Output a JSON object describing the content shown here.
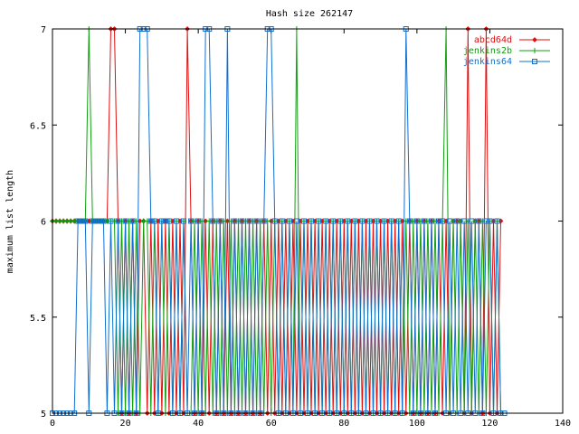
{
  "chart_data": {
    "type": "line",
    "title": "Hash size 262147",
    "xlabel": "",
    "ylabel": "maximum list length",
    "xlim": [
      0,
      140
    ],
    "ylim": [
      5,
      7
    ],
    "x_ticks": [
      "0",
      "20",
      "40",
      "60",
      "80",
      "100",
      "120",
      "140"
    ],
    "y_ticks": [
      "5",
      "5.5",
      "6",
      "6.5",
      "7"
    ],
    "legend_position": "top-right",
    "grid": false,
    "series": [
      {
        "name": "abcd64d",
        "color": "#e01010",
        "marker": "diamond",
        "x": [
          0,
          1,
          2,
          3,
          4,
          5,
          6,
          7,
          8,
          9,
          10,
          11,
          12,
          13,
          14,
          15,
          16,
          17,
          18,
          19,
          20,
          21,
          22,
          23,
          24,
          25,
          26,
          27,
          28,
          29,
          30,
          31,
          32,
          33,
          34,
          35,
          36,
          37,
          38,
          39,
          40,
          41,
          42,
          43,
          44,
          45,
          46,
          47,
          48,
          49,
          50,
          51,
          52,
          53,
          54,
          55,
          56,
          57,
          58,
          59,
          60,
          61,
          62,
          63,
          64,
          65,
          66,
          67,
          68,
          69,
          70,
          71,
          72,
          73,
          74,
          75,
          76,
          77,
          78,
          79,
          80,
          81,
          82,
          83,
          84,
          85,
          86,
          87,
          88,
          89,
          90,
          91,
          92,
          93,
          94,
          95,
          96,
          97,
          98,
          99,
          100,
          101,
          102,
          103,
          104,
          105,
          106,
          107,
          108,
          109,
          110,
          111,
          112,
          113,
          114,
          115,
          116,
          117,
          118,
          119,
          120,
          121,
          122,
          123
        ],
        "y": [
          6,
          6,
          6,
          6,
          6,
          6,
          6,
          6,
          6,
          6,
          6,
          6,
          6,
          6,
          6,
          6,
          7,
          7,
          6,
          5,
          6,
          5,
          6,
          5,
          6,
          6,
          5,
          6,
          5,
          6,
          5,
          6,
          5,
          6,
          5,
          6,
          5,
          7,
          6,
          5,
          6,
          5,
          6,
          5,
          6,
          5,
          6,
          5,
          6,
          5,
          6,
          5,
          6,
          5,
          6,
          5,
          6,
          5,
          6,
          5,
          6,
          5,
          6,
          5,
          6,
          5,
          6,
          5,
          6,
          5,
          6,
          5,
          6,
          5,
          6,
          5,
          6,
          5,
          6,
          5,
          6,
          5,
          6,
          5,
          6,
          5,
          6,
          5,
          6,
          5,
          6,
          5,
          6,
          5,
          6,
          5,
          6,
          5,
          6,
          5,
          6,
          5,
          6,
          5,
          6,
          5,
          6,
          5,
          6,
          5,
          6,
          6,
          6,
          5,
          7,
          5,
          6,
          6,
          5,
          7,
          5,
          6,
          5,
          6
        ]
      },
      {
        "name": "jenkins2b",
        "color": "#10a010",
        "marker": "plus",
        "x": [
          0,
          1,
          2,
          3,
          4,
          5,
          6,
          7,
          8,
          9,
          10,
          11,
          12,
          13,
          14,
          15,
          16,
          17,
          18,
          19,
          20,
          21,
          22,
          23,
          24,
          25,
          26,
          27,
          28,
          29,
          30,
          31,
          32,
          33,
          34,
          35,
          36,
          37,
          38,
          39,
          40,
          41,
          42,
          43,
          44,
          45,
          46,
          47,
          48,
          49,
          50,
          51,
          52,
          53,
          54,
          55,
          56,
          57,
          58,
          59,
          60,
          61,
          62,
          63,
          64,
          65,
          66,
          67,
          68,
          69,
          70,
          71,
          72,
          73,
          74,
          75,
          76,
          77,
          78,
          79,
          80,
          81,
          82,
          83,
          84,
          85,
          86,
          87,
          88,
          89,
          90,
          91,
          92,
          93,
          94,
          95,
          96,
          97,
          98,
          99,
          100,
          101,
          102,
          103,
          104,
          105,
          106,
          107,
          108,
          109,
          110,
          111,
          112,
          113,
          114,
          115,
          116,
          117,
          118,
          119,
          120,
          121,
          122,
          123
        ],
        "y": [
          6,
          6,
          6,
          6,
          6,
          6,
          6,
          6,
          6,
          6,
          7,
          6,
          6,
          6,
          6,
          6,
          6,
          6,
          5,
          6,
          5,
          6,
          5,
          6,
          5,
          6,
          6,
          5,
          6,
          5,
          6,
          5,
          6,
          5,
          6,
          5,
          6,
          5,
          5,
          6,
          5,
          6,
          5,
          6,
          5,
          6,
          5,
          6,
          5,
          6,
          5,
          6,
          5,
          6,
          5,
          6,
          5,
          6,
          5,
          6,
          5,
          6,
          5,
          6,
          5,
          6,
          5,
          7,
          5,
          6,
          5,
          6,
          5,
          6,
          5,
          6,
          5,
          6,
          5,
          6,
          5,
          6,
          5,
          6,
          5,
          6,
          5,
          6,
          5,
          6,
          5,
          6,
          5,
          6,
          5,
          6,
          5,
          6,
          5,
          6,
          5,
          6,
          5,
          6,
          5,
          6,
          5,
          6,
          7,
          5,
          6,
          5,
          6,
          5,
          6,
          5,
          6,
          5,
          6,
          5,
          6,
          5,
          6,
          5
        ]
      },
      {
        "name": "jenkins64",
        "color": "#1070d0",
        "marker": "square",
        "x": [
          0,
          1,
          2,
          3,
          4,
          5,
          6,
          7,
          8,
          9,
          10,
          11,
          12,
          13,
          14,
          15,
          16,
          17,
          18,
          19,
          20,
          21,
          22,
          23,
          24,
          25,
          26,
          27,
          28,
          29,
          30,
          31,
          32,
          33,
          34,
          35,
          36,
          37,
          38,
          39,
          40,
          41,
          42,
          43,
          44,
          45,
          46,
          47,
          48,
          49,
          50,
          51,
          52,
          53,
          54,
          55,
          56,
          57,
          58,
          59,
          60,
          61,
          62,
          63,
          64,
          65,
          66,
          67,
          68,
          69,
          70,
          71,
          72,
          73,
          74,
          75,
          76,
          77,
          78,
          79,
          80,
          81,
          82,
          83,
          84,
          85,
          86,
          87,
          88,
          89,
          90,
          91,
          92,
          93,
          94,
          95,
          96,
          97,
          98,
          99,
          100,
          101,
          102,
          103,
          104,
          105,
          106,
          107,
          108,
          109,
          110,
          111,
          112,
          113,
          114,
          115,
          116,
          117,
          118,
          119,
          120,
          121,
          122,
          123,
          124
        ],
        "y": [
          5,
          5,
          5,
          5,
          5,
          5,
          5,
          6,
          6,
          6,
          5,
          6,
          6,
          6,
          6,
          5,
          6,
          5,
          6,
          5,
          6,
          5,
          6,
          5,
          7,
          7,
          7,
          6,
          6,
          5,
          6,
          6,
          6,
          5,
          6,
          5,
          6,
          5,
          6,
          5,
          6,
          5,
          7,
          7,
          6,
          5,
          6,
          5,
          7,
          5,
          6,
          5,
          6,
          5,
          6,
          5,
          6,
          5,
          6,
          7,
          7,
          6,
          5,
          6,
          5,
          6,
          5,
          6,
          5,
          6,
          5,
          6,
          5,
          6,
          5,
          6,
          5,
          6,
          5,
          6,
          5,
          6,
          5,
          6,
          5,
          6,
          5,
          6,
          5,
          6,
          5,
          6,
          5,
          6,
          5,
          6,
          5,
          7,
          6,
          5,
          6,
          5,
          6,
          5,
          6,
          5,
          6,
          6,
          5,
          6,
          5,
          6,
          5,
          6,
          5,
          6,
          5,
          6,
          5,
          6,
          6,
          5,
          6,
          5,
          5
        ]
      }
    ]
  }
}
